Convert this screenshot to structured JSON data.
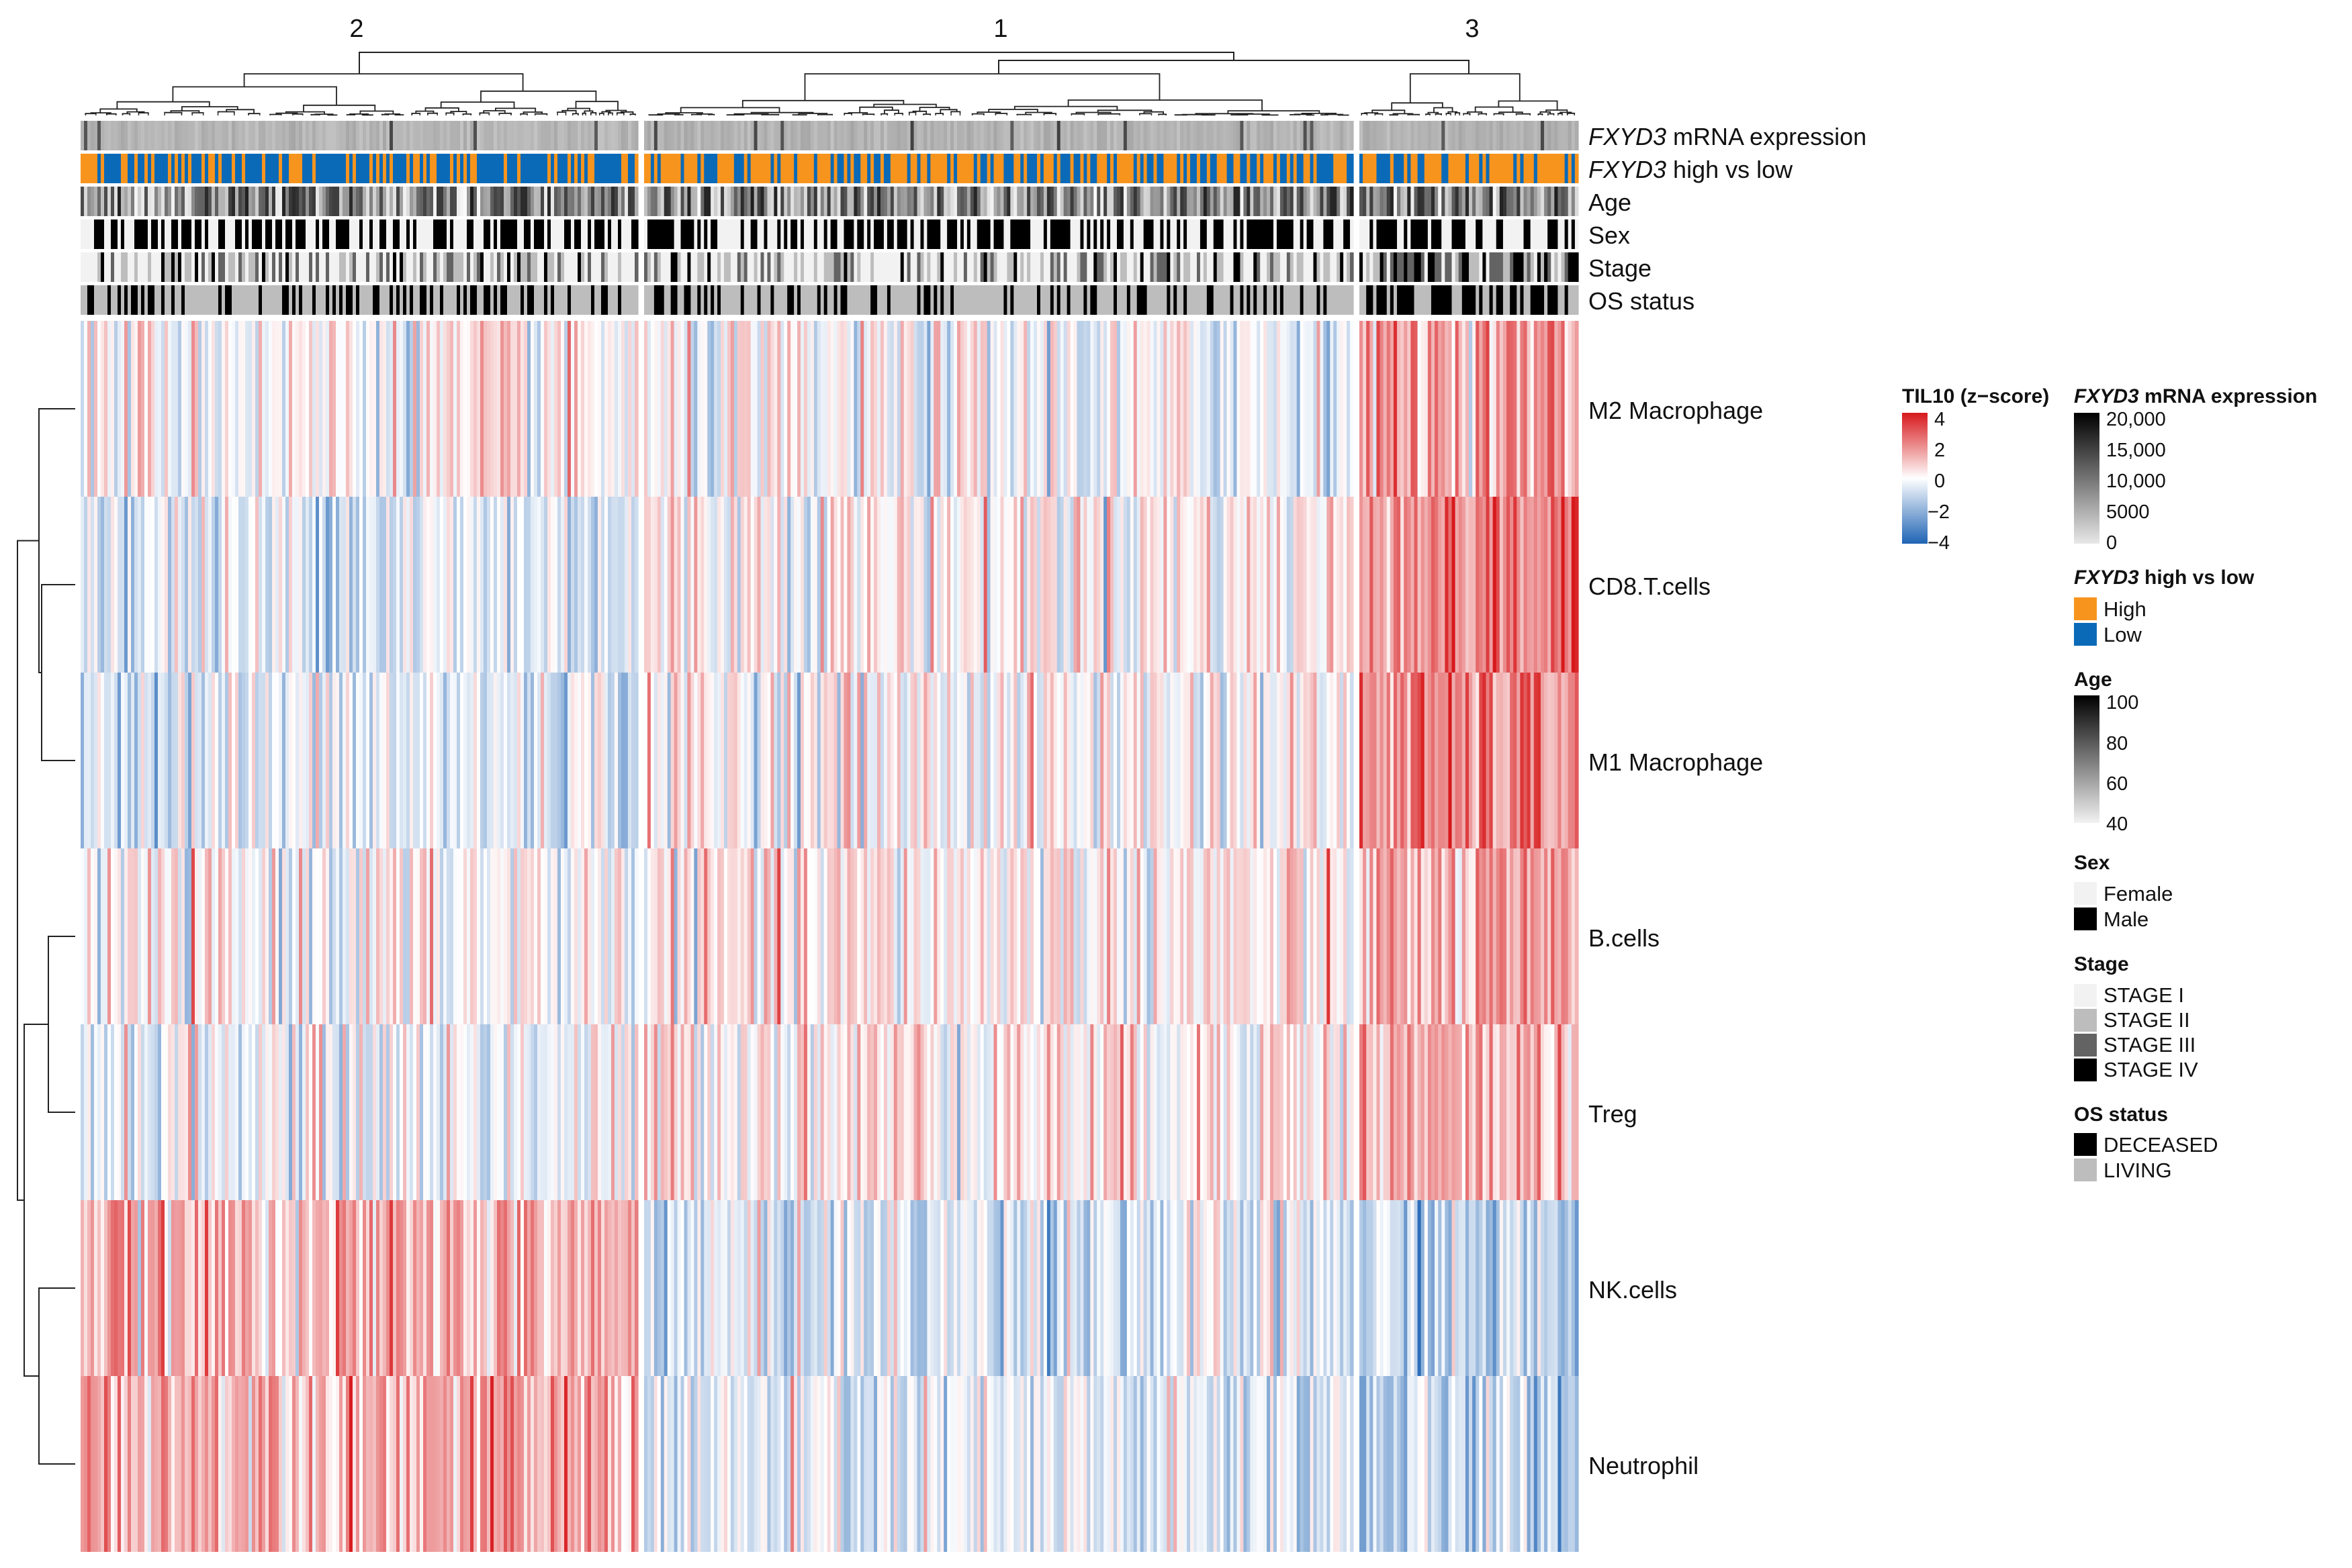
{
  "chart_data": {
    "type": "heatmap",
    "title": "",
    "cluster_labels": [
      "2",
      "1",
      "3"
    ],
    "clusters": [
      {
        "label": "2",
        "n_samples": 166
      },
      {
        "label": "1",
        "n_samples": 213
      },
      {
        "label": "3",
        "n_samples": 64
      }
    ],
    "annotation_tracks": [
      {
        "label_italic": "FXYD3",
        "label_rest": " mRNA expression",
        "type": "continuous"
      },
      {
        "label_italic": "FXYD3",
        "label_rest": " high vs low",
        "type": "binary"
      },
      {
        "label_italic": "",
        "label_rest": "Age",
        "type": "continuous"
      },
      {
        "label_italic": "",
        "label_rest": "Sex",
        "type": "binary"
      },
      {
        "label_italic": "",
        "label_rest": "Stage",
        "type": "ordinal"
      },
      {
        "label_italic": "",
        "label_rest": "OS status",
        "type": "binary"
      }
    ],
    "rows": [
      "M2 Macrophage",
      "CD8.T.cells",
      "M1 Macrophage",
      "B.cells",
      "Treg",
      "NK.cells",
      "Neutrophil"
    ],
    "row_mean_zscore_by_cluster": {
      "columns": [
        "2",
        "1",
        "3"
      ],
      "M2 Macrophage": [
        0.1,
        -0.2,
        1.6
      ],
      "CD8.T.cells": [
        -0.5,
        0.3,
        2.2
      ],
      "M1 Macrophage": [
        -0.5,
        0.1,
        2.0
      ],
      "B.cells": [
        0.0,
        0.3,
        1.2
      ],
      "Treg": [
        -0.2,
        0.5,
        1.3
      ],
      "NK.cells": [
        1.2,
        -0.6,
        -1.2
      ],
      "Neutrophil": [
        1.5,
        -0.6,
        -1.2
      ]
    },
    "color_scale": {
      "min": -4,
      "max": 4,
      "colors": [
        "#1f64b4",
        "#ffffff",
        "#d7191c"
      ]
    }
  },
  "legend": {
    "til10": {
      "title": "TIL10 (z−score)",
      "ticks": [
        "4",
        "2",
        "0",
        "−2",
        "−4"
      ]
    },
    "fxyd3_expr": {
      "title_italic": "FXYD3",
      "title_rest": " mRNA expression",
      "ticks": [
        "20,000",
        "15,000",
        "10,000",
        "5000",
        "0"
      ]
    },
    "fxyd3_group": {
      "title_italic": "FXYD3",
      "title_rest": " high vs low",
      "items": [
        {
          "label": "High",
          "color": "#f7941d"
        },
        {
          "label": "Low",
          "color": "#0b6ab8"
        }
      ]
    },
    "age": {
      "title": "Age",
      "ticks": [
        "100",
        "80",
        "60",
        "40"
      ]
    },
    "sex": {
      "title": "Sex",
      "items": [
        {
          "label": "Female",
          "color": "#f2f2f2"
        },
        {
          "label": "Male",
          "color": "#000000"
        }
      ]
    },
    "stage": {
      "title": "Stage",
      "items": [
        {
          "label": "STAGE I",
          "color": "#f2f2f2"
        },
        {
          "label": "STAGE II",
          "color": "#bdbdbd"
        },
        {
          "label": "STAGE III",
          "color": "#636363"
        },
        {
          "label": "STAGE IV",
          "color": "#000000"
        }
      ]
    },
    "os": {
      "title": "OS status",
      "items": [
        {
          "label": "DECEASED",
          "color": "#000000"
        },
        {
          "label": "LIVING",
          "color": "#bdbdbd"
        }
      ]
    }
  }
}
